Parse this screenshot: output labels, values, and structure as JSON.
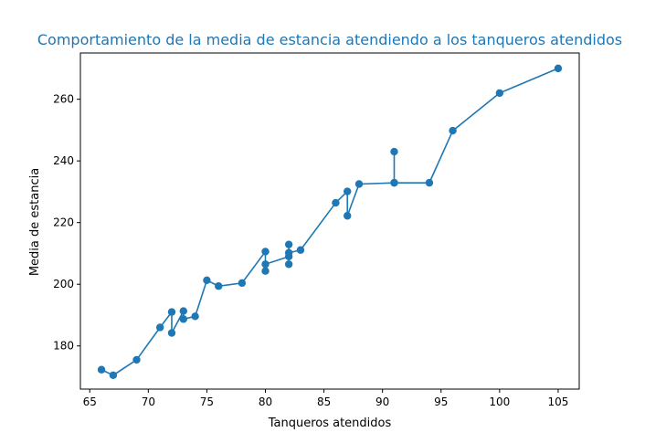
{
  "chart_data": {
    "type": "line",
    "title": "Comportamiento de la media de estancia atendiendo a los tanqueros atendidos",
    "xlabel": "Tanqueros atendidos",
    "ylabel": "Media de estancia",
    "xlim": [
      64.2,
      106.8
    ],
    "ylim": [
      166,
      275
    ],
    "xticks": [
      65,
      70,
      75,
      80,
      85,
      90,
      95,
      100,
      105
    ],
    "yticks": [
      180,
      200,
      220,
      240,
      260
    ],
    "grid": false,
    "series": [
      {
        "color": "#1f77b4",
        "marker": "circle",
        "points": [
          {
            "x": 66,
            "y": 172.3
          },
          {
            "x": 67,
            "y": 170.5
          },
          {
            "x": 69,
            "y": 175.5
          },
          {
            "x": 71,
            "y": 186
          },
          {
            "x": 72,
            "y": 191
          },
          {
            "x": 72,
            "y": 184.2
          },
          {
            "x": 73,
            "y": 191.3
          },
          {
            "x": 73,
            "y": 188.7
          },
          {
            "x": 74,
            "y": 189.6
          },
          {
            "x": 75,
            "y": 201.3
          },
          {
            "x": 76,
            "y": 199.4
          },
          {
            "x": 78,
            "y": 200.4
          },
          {
            "x": 80,
            "y": 210.6
          },
          {
            "x": 80,
            "y": 204.3
          },
          {
            "x": 80,
            "y": 206.5
          },
          {
            "x": 82,
            "y": 209
          },
          {
            "x": 82,
            "y": 206.5
          },
          {
            "x": 82,
            "y": 212.9
          },
          {
            "x": 82,
            "y": 210.2
          },
          {
            "x": 83,
            "y": 211.1
          },
          {
            "x": 86,
            "y": 226.4
          },
          {
            "x": 87,
            "y": 230.1
          },
          {
            "x": 87,
            "y": 222.2
          },
          {
            "x": 88,
            "y": 232.5
          },
          {
            "x": 91,
            "y": 232.9
          },
          {
            "x": 91,
            "y": 243
          },
          {
            "x": 91,
            "y": 232.9
          },
          {
            "x": 94,
            "y": 232.9
          },
          {
            "x": 96,
            "y": 249.8
          },
          {
            "x": 100,
            "y": 262
          },
          {
            "x": 105,
            "y": 270
          }
        ]
      }
    ]
  },
  "colors": {
    "title": "#1f77b4",
    "series": "#1f77b4",
    "axes": "#000000"
  }
}
